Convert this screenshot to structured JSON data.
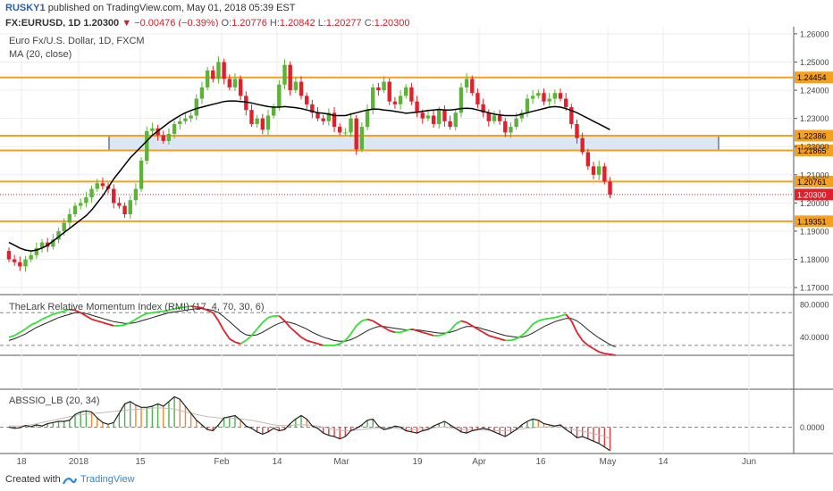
{
  "header": {
    "author": "RUSKY1",
    "published_text": "published on TradingView.com, May 01, 2018 05:39 EST",
    "symbol": "FX:EURUSD, 1D",
    "last": "1.20300",
    "change": "−0.00476 (−0.39%)",
    "o_label": "O:",
    "o": "1.20776",
    "h_label": "H:",
    "h": "1.20842",
    "l_label": "L:",
    "l": "1.20277",
    "c_label": "C:",
    "c": "1.20300"
  },
  "footer": {
    "created_with": "Created with",
    "brand": "TradingView"
  },
  "colors": {
    "up": "#5cb338",
    "down": "#e0202a",
    "ma": "#000000",
    "level": "#f5a020",
    "zone_fill": "#dbe7f5",
    "zone_border": "#2a3d66",
    "rmi_up": "#33e033",
    "rmi_down": "#e0202a",
    "osc_up": "#4caf50",
    "osc_down": "#e03a3a",
    "osc_orange": "#f08a30"
  },
  "chart_data": [
    {
      "type": "candlestick",
      "title": "Euro Fx/U.S. Dollar, 1D, FXCM",
      "legend": [
        "MA (20, close)"
      ],
      "ylim": [
        1.1675,
        1.2625
      ],
      "y_ticks": [
        "1.26000",
        "1.25000",
        "1.24000",
        "1.23000",
        "1.22000",
        "1.21000",
        "1.20000",
        "1.19000",
        "1.18000",
        "1.17000"
      ],
      "x_ticks": [
        "18",
        "2018",
        "15",
        "Feb",
        "14",
        "Mar",
        "19",
        "Apr",
        "16",
        "May",
        "14",
        "Jun"
      ],
      "horizontal_levels": [
        {
          "value": 1.24454,
          "label": "1.24454"
        },
        {
          "value": 1.22386,
          "label": "1.22386"
        },
        {
          "value": 1.21865,
          "label": "1.21865"
        },
        {
          "value": 1.20761,
          "label": "1.20761"
        },
        {
          "value": 1.19351,
          "label": "1.19351"
        }
      ],
      "zone": {
        "low": 1.2187,
        "high": 1.2239
      },
      "last_price": {
        "value": 1.203,
        "label": "1.20300"
      },
      "closes": [
        1.18,
        1.179,
        1.1775,
        1.18,
        1.1815,
        1.184,
        1.186,
        1.1845,
        1.187,
        1.19,
        1.193,
        1.196,
        1.199,
        1.2,
        1.202,
        1.205,
        1.207,
        1.206,
        1.205,
        1.2,
        1.199,
        1.196,
        1.201,
        1.205,
        1.215,
        1.2255,
        1.2265,
        1.224,
        1.222,
        1.2245,
        1.228,
        1.229,
        1.23,
        1.231,
        1.237,
        1.241,
        1.247,
        1.244,
        1.25,
        1.244,
        1.241,
        1.244,
        1.238,
        1.233,
        1.228,
        1.23,
        1.226,
        1.231,
        1.234,
        1.242,
        1.249,
        1.24,
        1.243,
        1.238,
        1.235,
        1.232,
        1.23,
        1.229,
        1.232,
        1.227,
        1.225,
        1.225,
        1.23,
        1.219,
        1.227,
        1.233,
        1.241,
        1.24,
        1.243,
        1.236,
        1.235,
        1.238,
        1.241,
        1.236,
        1.232,
        1.23,
        1.231,
        1.228,
        1.233,
        1.229,
        1.227,
        1.232,
        1.241,
        1.244,
        1.239,
        1.235,
        1.232,
        1.229,
        1.231,
        1.229,
        1.225,
        1.227,
        1.23,
        1.232,
        1.237,
        1.238,
        1.239,
        1.236,
        1.237,
        1.239,
        1.237,
        1.234,
        1.228,
        1.223,
        1.218,
        1.213,
        1.21,
        1.213,
        1.2076,
        1.203
      ],
      "ma": [
        1.186,
        1.185,
        1.184,
        1.1833,
        1.183,
        1.1833,
        1.184,
        1.185,
        1.1865,
        1.188,
        1.1895,
        1.191,
        1.1925,
        1.194,
        1.1955,
        1.1975,
        1.2,
        1.2025,
        1.2055,
        1.2085,
        1.211,
        1.2135,
        1.216,
        1.218,
        1.22,
        1.222,
        1.224,
        1.2255,
        1.227,
        1.2285,
        1.2298,
        1.231,
        1.232,
        1.2328,
        1.2335,
        1.234,
        1.2345,
        1.235,
        1.2355,
        1.236,
        1.2362,
        1.2362,
        1.236,
        1.2358,
        1.2355,
        1.235,
        1.2346,
        1.2342,
        1.234,
        1.234,
        1.2342,
        1.234,
        1.2338,
        1.2335,
        1.233,
        1.2325,
        1.232,
        1.2318,
        1.2315,
        1.231,
        1.231,
        1.231,
        1.2315,
        1.232,
        1.2325,
        1.233,
        1.2333,
        1.2333,
        1.233,
        1.2328,
        1.2325,
        1.2322,
        1.2318,
        1.232,
        1.2322,
        1.2325,
        1.2328,
        1.233,
        1.2332,
        1.233,
        1.233,
        1.2332,
        1.2335,
        1.2336,
        1.2335,
        1.233,
        1.2325,
        1.232,
        1.2315,
        1.2312,
        1.231,
        1.231,
        1.231,
        1.2315,
        1.232,
        1.2325,
        1.233,
        1.2335,
        1.234,
        1.2342,
        1.234,
        1.2335,
        1.2328,
        1.232,
        1.231,
        1.23,
        1.229,
        1.228,
        1.227,
        1.226
      ]
    },
    {
      "type": "line",
      "title": "TheLark Relative Momentum Index (RMI) (17, 4, 70, 30, 6)",
      "ylim": [
        20,
        90
      ],
      "y_ticks": [
        "80.0000",
        "40.0000"
      ],
      "bands": [
        70,
        30
      ],
      "rmi": [
        40,
        42,
        46,
        50,
        55,
        58,
        62,
        65,
        68,
        70,
        72,
        74,
        73,
        70,
        66,
        62,
        60,
        58,
        56,
        54,
        54,
        55,
        58,
        62,
        66,
        69,
        70,
        71,
        72,
        73,
        75,
        76,
        77,
        78,
        77,
        76,
        73,
        70,
        60,
        48,
        38,
        34,
        32,
        36,
        42,
        50,
        58,
        64,
        66,
        66,
        60,
        52,
        46,
        40,
        36,
        34,
        32,
        30,
        30,
        30,
        32,
        36,
        44,
        54,
        60,
        62,
        60,
        56,
        52,
        48,
        46,
        46,
        48,
        50,
        48,
        46,
        44,
        42,
        42,
        44,
        48,
        56,
        60,
        58,
        54,
        50,
        46,
        42,
        40,
        38,
        36,
        36,
        38,
        42,
        48,
        56,
        60,
        62,
        63,
        64,
        66,
        68,
        60,
        46,
        36,
        30,
        26,
        22,
        20,
        19,
        18
      ],
      "signal": [
        36,
        38,
        41,
        44,
        48,
        52,
        55,
        58,
        61,
        64,
        66,
        68,
        70,
        70,
        69,
        67,
        65,
        63,
        61,
        59,
        58,
        57,
        57,
        58,
        60,
        62,
        64,
        66,
        68,
        70,
        71,
        72,
        73,
        74,
        75,
        75,
        74,
        73,
        70,
        65,
        59,
        53,
        47,
        43,
        42,
        43,
        46,
        50,
        54,
        57,
        59,
        58,
        56,
        53,
        50,
        46,
        43,
        40,
        38,
        36,
        35,
        35,
        37,
        40,
        44,
        48,
        51,
        53,
        53,
        52,
        51,
        50,
        49,
        49,
        49,
        48,
        47,
        46,
        45,
        45,
        46,
        48,
        51,
        53,
        53,
        52,
        50,
        48,
        46,
        44,
        42,
        41,
        40,
        40,
        42,
        45,
        49,
        53,
        56,
        59,
        61,
        63,
        63,
        60,
        55,
        49,
        44,
        39,
        35,
        31,
        28
      ]
    },
    {
      "type": "bar",
      "title": "ABSSIO_LB (20, 34)",
      "y_ticks": [
        "0.0000"
      ],
      "ylim": [
        -0.0042,
        0.0062
      ],
      "values": [
        0.0,
        -0.0002,
        -0.0001,
        0.0003,
        0.0001,
        0.0004,
        0.0002,
        0.0006,
        0.0008,
        0.001,
        0.001,
        0.0012,
        0.0022,
        0.0026,
        0.0028,
        0.0026,
        0.0016,
        0.0008,
        0.0005,
        0.0008,
        0.0024,
        0.004,
        0.0044,
        0.0038,
        0.0034,
        0.0034,
        0.0036,
        0.004,
        0.0036,
        0.0044,
        0.0052,
        0.0048,
        0.0036,
        0.0024,
        0.0012,
        0.0004,
        -0.0004,
        -0.0006,
        0.0004,
        0.0016,
        0.0018,
        0.002,
        0.0012,
        0.0002,
        -0.0002,
        -0.0008,
        -0.0012,
        -0.0008,
        -0.0002,
        -0.0006,
        -0.0004,
        0.0006,
        0.0014,
        0.002,
        0.0014,
        0.0002,
        -0.0002,
        -0.001,
        -0.0014,
        -0.0016,
        -0.002,
        -0.0016,
        -0.0006,
        -0.0002,
        0.0004,
        0.0012,
        0.0014,
        0.0002,
        -0.0004,
        -0.0002,
        0.0002,
        0.0,
        -0.0006,
        -0.0008,
        -0.001,
        -0.0006,
        -0.0004,
        0.0002,
        0.0006,
        0.001,
        0.0004,
        -0.0002,
        -0.0008,
        -0.001,
        -0.0006,
        -0.0004,
        -0.0002,
        -0.0004,
        -0.0008,
        -0.0012,
        -0.0016,
        -0.001,
        -0.0004,
        0.0004,
        0.001,
        0.0014,
        0.0012,
        0.0006,
        0.0004,
        0.0002,
        0.0004,
        -0.0004,
        -0.001,
        -0.0018,
        -0.0016,
        -0.002,
        -0.0024,
        -0.0028,
        -0.0034,
        -0.004
      ],
      "signal": [
        0.0002,
        0.0002,
        0.0002,
        0.0003,
        0.0004,
        0.0006,
        0.0008,
        0.001,
        0.0012,
        0.0014,
        0.0016,
        0.0018,
        0.002,
        0.0022,
        0.0022,
        0.0023,
        0.0024,
        0.0025,
        0.0026,
        0.0027,
        0.0028,
        0.0029,
        0.003,
        0.003,
        0.0031,
        0.0032,
        0.0033,
        0.0033,
        0.0033,
        0.0032,
        0.0031,
        0.0029,
        0.0026,
        0.0024,
        0.0022,
        0.002,
        0.0018,
        0.0017,
        0.0016,
        0.0016,
        0.0016,
        0.0015,
        0.0014,
        0.0013,
        0.0012,
        0.001,
        0.0008,
        0.0006,
        0.0004,
        0.0003,
        0.0003,
        0.0003,
        0.0004,
        0.0004,
        0.0004,
        0.0003,
        0.0002,
        0.0,
        -0.0002,
        -0.0004,
        -0.0005,
        -0.0006,
        -0.0006,
        -0.0005,
        -0.0004,
        -0.0003,
        -0.0002,
        -0.0002,
        -0.0002,
        -0.0002,
        -0.0002,
        -0.0003,
        -0.0004,
        -0.0004,
        -0.0004,
        -0.0003,
        -0.0002,
        -0.0001,
        0.0,
        0.0,
        -0.0001,
        -0.0002,
        -0.0003,
        -0.0004,
        -0.0004,
        -0.0004,
        -0.0005,
        -0.0005,
        -0.0006,
        -0.0006,
        -0.0006,
        -0.0005,
        -0.0004,
        -0.0003,
        -0.0002,
        -0.0001,
        0.0,
        0.0,
        0.0001,
        0.0001,
        0.0,
        -0.0001,
        -0.0003,
        -0.0005,
        -0.0007,
        -0.0009,
        -0.0011,
        -0.0013,
        -0.0016,
        -0.0019
      ]
    }
  ]
}
